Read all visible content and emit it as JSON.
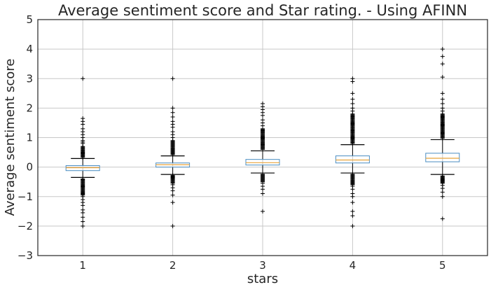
{
  "chart_data": {
    "type": "box",
    "title": "Average sentiment score and Star rating. - Using AFINN",
    "xlabel": "stars",
    "ylabel": "Average sentiment score",
    "ylim": [
      -3,
      5
    ],
    "yticks": [
      -3,
      -2,
      -1,
      0,
      1,
      2,
      3,
      4,
      5
    ],
    "ytick_labels": [
      "−3",
      "−2",
      "−1",
      "0",
      "1",
      "2",
      "3",
      "4",
      "5"
    ],
    "categories": [
      "1",
      "2",
      "3",
      "4",
      "5"
    ],
    "grid": true,
    "colors": {
      "box": "#4a8dc2",
      "median": "#e8a33b",
      "whisker": "#000000",
      "flier": "#000000",
      "grid": "#c8c8c8",
      "frame": "#262626"
    },
    "boxes": [
      {
        "category": "1",
        "whislo": -0.35,
        "q1": -0.12,
        "med": -0.02,
        "q3": 0.05,
        "whishi": 0.29,
        "dense_fliers": [
          [
            0.33,
            0.7
          ],
          [
            -0.4,
            -0.95
          ]
        ],
        "fliers": [
          3.0,
          1.65,
          1.55,
          1.45,
          1.3,
          1.2,
          1.1,
          1.0,
          0.9,
          0.85,
          0.8,
          -1.0,
          -1.1,
          -1.2,
          -1.3,
          -1.45,
          -1.55,
          -1.7,
          -1.85,
          -2.0
        ]
      },
      {
        "category": "2",
        "whislo": -0.25,
        "q1": 0.0,
        "med": 0.08,
        "q3": 0.14,
        "whishi": 0.38,
        "dense_fliers": [
          [
            0.42,
            0.9
          ],
          [
            -0.28,
            -0.55
          ]
        ],
        "fliers": [
          3.0,
          2.0,
          1.85,
          1.7,
          1.55,
          1.45,
          1.35,
          1.2,
          1.1,
          1.0,
          -0.6,
          -0.7,
          -0.8,
          -0.95,
          -1.2,
          -2.0
        ]
      },
      {
        "category": "3",
        "whislo": -0.2,
        "q1": 0.07,
        "med": 0.15,
        "q3": 0.26,
        "whishi": 0.55,
        "dense_fliers": [
          [
            0.6,
            1.3
          ],
          [
            -0.24,
            -0.5
          ]
        ],
        "fliers": [
          2.15,
          2.05,
          1.95,
          1.85,
          1.75,
          1.6,
          1.5,
          1.4,
          -0.55,
          -0.65,
          -0.75,
          -0.9,
          -1.5
        ]
      },
      {
        "category": "4",
        "whislo": -0.2,
        "q1": 0.14,
        "med": 0.24,
        "q3": 0.38,
        "whishi": 0.76,
        "dense_fliers": [
          [
            0.8,
            1.8
          ],
          [
            -0.24,
            -0.6
          ]
        ],
        "fliers": [
          3.0,
          2.9,
          2.5,
          2.3,
          2.15,
          2.0,
          1.9,
          -0.65,
          -0.75,
          -0.9,
          -1.0,
          -1.2,
          -1.5,
          -1.65,
          -2.0
        ]
      },
      {
        "category": "5",
        "whislo": -0.25,
        "q1": 0.18,
        "med": 0.3,
        "q3": 0.47,
        "whishi": 0.93,
        "dense_fliers": [
          [
            0.98,
            1.8
          ],
          [
            -0.3,
            -0.55
          ]
        ],
        "fliers": [
          4.0,
          3.75,
          3.5,
          3.05,
          2.5,
          2.3,
          2.15,
          2.0,
          1.9,
          -0.62,
          -0.72,
          -0.85,
          -1.0,
          -1.75
        ]
      }
    ]
  }
}
